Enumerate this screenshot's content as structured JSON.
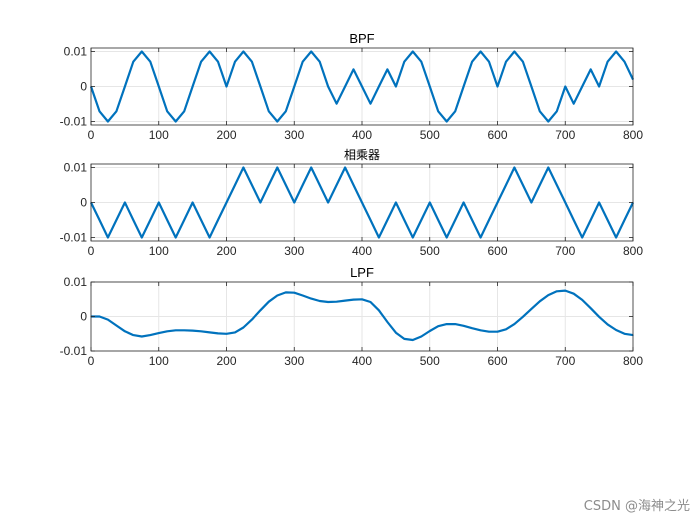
{
  "watermark": "CSDN @海神之光",
  "colors": {
    "line": "#0072BD",
    "axis": "#262626",
    "grid": "#e6e6e6",
    "background": "#ffffff"
  },
  "chart_data": [
    {
      "type": "line",
      "title": "BPF",
      "xlim": [
        0,
        800
      ],
      "ylim": [
        -0.011,
        0.011
      ],
      "xticks": [
        0,
        100,
        200,
        300,
        400,
        500,
        600,
        700,
        800
      ],
      "xtick_labels": [
        "0",
        "100",
        "200",
        "300",
        "400",
        "500",
        "600",
        "700",
        "800"
      ],
      "yticks": [
        0.01,
        0,
        -0.01
      ],
      "ytick_labels": [
        "0.01",
        "0",
        "-0.01"
      ],
      "grid": true,
      "series": [
        {
          "name": "BPF",
          "x": [
            0,
            12.5,
            25,
            37.5,
            50,
            62.5,
            75,
            87.5,
            100,
            112.5,
            125,
            137.5,
            150,
            162.5,
            175,
            187.5,
            200,
            212.5,
            225,
            237.5,
            250,
            262.5,
            275,
            287.5,
            300,
            312.5,
            325,
            337.5,
            350,
            362.5,
            375,
            387.5,
            400,
            412.5,
            425,
            437.5,
            450,
            462.5,
            475,
            487.5,
            500,
            512.5,
            525,
            537.5,
            550,
            562.5,
            575,
            587.5,
            600,
            612.5,
            625,
            637.5,
            650,
            662.5,
            675,
            687.5,
            700,
            712.5,
            725,
            737.5,
            750,
            762.5,
            775,
            787.5,
            800
          ],
          "y": [
            0,
            -0.0071,
            -0.01,
            -0.0071,
            0,
            0.0071,
            0.01,
            0.0071,
            0,
            -0.0071,
            -0.01,
            -0.0071,
            0,
            0.0071,
            0.01,
            0.0071,
            0,
            0.0071,
            0.01,
            0.0071,
            0,
            -0.0071,
            -0.01,
            -0.0071,
            0,
            0.0071,
            0.01,
            0.0071,
            0,
            -0.0049,
            0,
            0.0049,
            0,
            -0.0049,
            0,
            0.0049,
            0,
            0.0071,
            0.01,
            0.0071,
            0,
            -0.0071,
            -0.01,
            -0.0071,
            0,
            0.0071,
            0.01,
            0.0071,
            0,
            0.0071,
            0.01,
            0.0071,
            0,
            -0.0071,
            -0.01,
            -0.0071,
            0,
            -0.0049,
            0,
            0.0049,
            0,
            0.0071,
            0.01,
            0.0071,
            0.002
          ]
        }
      ]
    },
    {
      "type": "line",
      "title": "相乘器",
      "xlim": [
        0,
        800
      ],
      "ylim": [
        -0.011,
        0.011
      ],
      "xticks": [
        0,
        100,
        200,
        300,
        400,
        500,
        600,
        700,
        800
      ],
      "xtick_labels": [
        "0",
        "100",
        "200",
        "300",
        "400",
        "500",
        "600",
        "700",
        "800"
      ],
      "yticks": [
        0.01,
        0,
        -0.01
      ],
      "ytick_labels": [
        "0.01",
        "0",
        "-0.01"
      ],
      "grid": true,
      "series": [
        {
          "name": "相乘器",
          "x": [
            0,
            12.5,
            25,
            37.5,
            50,
            62.5,
            75,
            87.5,
            100,
            112.5,
            125,
            137.5,
            150,
            162.5,
            175,
            187.5,
            200,
            212.5,
            225,
            237.5,
            250,
            262.5,
            275,
            287.5,
            300,
            312.5,
            325,
            337.5,
            350,
            362.5,
            375,
            387.5,
            400,
            412.5,
            425,
            437.5,
            450,
            462.5,
            475,
            487.5,
            500,
            512.5,
            525,
            537.5,
            550,
            562.5,
            575,
            587.5,
            600,
            612.5,
            625,
            637.5,
            650,
            662.5,
            675,
            687.5,
            700,
            712.5,
            725,
            737.5,
            750,
            762.5,
            775,
            787.5,
            800
          ],
          "y": [
            0,
            -0.005,
            -0.01,
            -0.005,
            0,
            -0.005,
            -0.01,
            -0.005,
            0,
            -0.005,
            -0.01,
            -0.005,
            0,
            -0.005,
            -0.01,
            -0.005,
            0,
            0.005,
            0.01,
            0.005,
            0,
            0.005,
            0.01,
            0.005,
            0,
            0.005,
            0.01,
            0.005,
            0,
            0.005,
            0.01,
            0.005,
            0,
            -0.005,
            -0.01,
            -0.005,
            0,
            -0.005,
            -0.01,
            -0.005,
            0,
            -0.005,
            -0.01,
            -0.005,
            0,
            -0.005,
            -0.01,
            -0.005,
            0,
            0.005,
            0.01,
            0.005,
            0,
            0.005,
            0.01,
            0.005,
            0,
            -0.005,
            -0.01,
            -0.005,
            0,
            -0.005,
            -0.01,
            -0.005,
            0
          ]
        }
      ]
    },
    {
      "type": "line",
      "title": "LPF",
      "xlim": [
        0,
        800
      ],
      "ylim": [
        -0.01,
        0.01
      ],
      "xticks": [
        0,
        100,
        200,
        300,
        400,
        500,
        600,
        700,
        800
      ],
      "xtick_labels": [
        "0",
        "100",
        "200",
        "300",
        "400",
        "500",
        "600",
        "700",
        "800"
      ],
      "yticks": [
        0.01,
        0,
        -0.01
      ],
      "ytick_labels": [
        "0.01",
        "0",
        "-0.01"
      ],
      "grid": true,
      "series": [
        {
          "name": "LPF",
          "x": [
            0,
            12.5,
            25,
            37.5,
            50,
            62.5,
            75,
            87.5,
            100,
            112.5,
            125,
            137.5,
            150,
            162.5,
            175,
            187.5,
            200,
            212.5,
            225,
            237.5,
            250,
            262.5,
            275,
            287.5,
            300,
            312.5,
            325,
            337.5,
            350,
            362.5,
            375,
            387.5,
            400,
            412.5,
            425,
            437.5,
            450,
            462.5,
            475,
            487.5,
            500,
            512.5,
            525,
            537.5,
            550,
            562.5,
            575,
            587.5,
            600,
            612.5,
            625,
            637.5,
            650,
            662.5,
            675,
            687.5,
            700,
            712.5,
            725,
            737.5,
            750,
            762.5,
            775,
            787.5,
            800
          ],
          "y": [
            0,
            0,
            -0.0009,
            -0.0026,
            -0.0043,
            -0.0054,
            -0.0058,
            -0.0054,
            -0.0048,
            -0.0043,
            -0.004,
            -0.004,
            -0.0041,
            -0.0043,
            -0.0046,
            -0.0049,
            -0.005,
            -0.0046,
            -0.0032,
            -0.0009,
            0.0018,
            0.0043,
            0.0061,
            0.007,
            0.0069,
            0.0061,
            0.0052,
            0.0045,
            0.0042,
            0.0043,
            0.0046,
            0.0049,
            0.005,
            0.0042,
            0.0018,
            -0.0016,
            -0.0047,
            -0.0065,
            -0.0068,
            -0.0058,
            -0.0042,
            -0.0028,
            -0.0022,
            -0.0022,
            -0.0027,
            -0.0034,
            -0.004,
            -0.0044,
            -0.0044,
            -0.0037,
            -0.0022,
            -0.0001,
            0.0022,
            0.0044,
            0.0062,
            0.0073,
            0.0075,
            0.0066,
            0.0048,
            0.0024,
            -0.0001,
            -0.0023,
            -0.0039,
            -0.005,
            -0.0054
          ]
        }
      ]
    }
  ]
}
